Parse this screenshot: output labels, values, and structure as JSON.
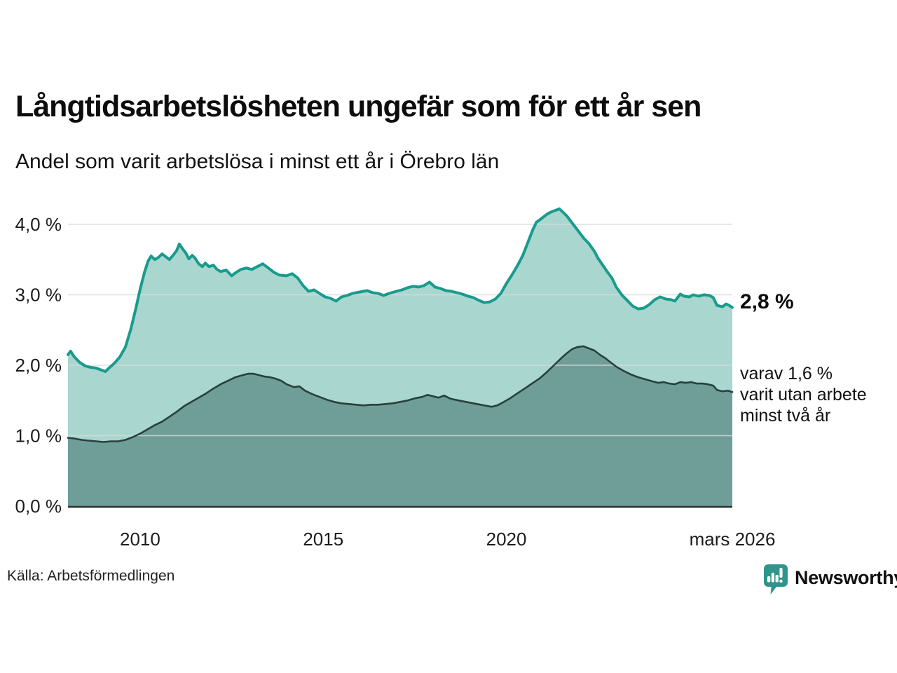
{
  "header": {
    "title": "Långtidsarbetslösheten ungefär som för ett år sen",
    "subtitle": "Andel som varit arbetslösa i minst ett år i Örebro län"
  },
  "chart_data": {
    "type": "area",
    "title": "Långtidsarbetslösheten ungefär som för ett år sen",
    "subtitle": "Andel som varit arbetslösa i minst ett år i Örebro län",
    "unit": "%",
    "grid": true,
    "colors": {
      "line_1yr": "#189b8d",
      "fill_1yr": "#a9d6cf",
      "line_2yr": "#27413d",
      "fill_2yr": "#6f9e99",
      "gridline": "#d7dbda",
      "baseline": "#2e2e2e",
      "tick_text": "#1c1c1c",
      "brand_teal": "#2f948b"
    },
    "x_axis": {
      "range": [
        2008.03,
        2026.17
      ],
      "ticks": [
        {
          "value": 2010,
          "label": "2010"
        },
        {
          "value": 2015,
          "label": "2015"
        },
        {
          "value": 2020,
          "label": "2020"
        },
        {
          "value": 2026.17,
          "label": "mars 2026"
        }
      ]
    },
    "y_axis": {
      "range": [
        0,
        4
      ],
      "ticks": [
        {
          "value": 0,
          "label": "0,0 %"
        },
        {
          "value": 1,
          "label": "1,0 %"
        },
        {
          "value": 2,
          "label": "2,0 %"
        },
        {
          "value": 3,
          "label": "3,0 %"
        },
        {
          "value": 4,
          "label": "4,0 %"
        }
      ]
    },
    "series": [
      {
        "name": "Andel arbetslösa minst ett år",
        "end_value": "2,8 %",
        "points": [
          [
            2008.03,
            2.15
          ],
          [
            2008.1,
            2.2
          ],
          [
            2008.2,
            2.12
          ],
          [
            2008.35,
            2.04
          ],
          [
            2008.5,
            1.99
          ],
          [
            2008.65,
            1.97
          ],
          [
            2008.8,
            1.96
          ],
          [
            2008.95,
            1.93
          ],
          [
            2009.05,
            1.91
          ],
          [
            2009.15,
            1.96
          ],
          [
            2009.3,
            2.03
          ],
          [
            2009.45,
            2.12
          ],
          [
            2009.6,
            2.26
          ],
          [
            2009.75,
            2.52
          ],
          [
            2009.88,
            2.8
          ],
          [
            2010.0,
            3.08
          ],
          [
            2010.12,
            3.32
          ],
          [
            2010.22,
            3.48
          ],
          [
            2010.3,
            3.55
          ],
          [
            2010.4,
            3.5
          ],
          [
            2010.5,
            3.53
          ],
          [
            2010.6,
            3.58
          ],
          [
            2010.7,
            3.54
          ],
          [
            2010.8,
            3.5
          ],
          [
            2010.9,
            3.56
          ],
          [
            2011.0,
            3.63
          ],
          [
            2011.07,
            3.72
          ],
          [
            2011.15,
            3.66
          ],
          [
            2011.25,
            3.59
          ],
          [
            2011.33,
            3.51
          ],
          [
            2011.42,
            3.56
          ],
          [
            2011.5,
            3.52
          ],
          [
            2011.6,
            3.44
          ],
          [
            2011.7,
            3.4
          ],
          [
            2011.78,
            3.45
          ],
          [
            2011.88,
            3.4
          ],
          [
            2012.0,
            3.42
          ],
          [
            2012.1,
            3.36
          ],
          [
            2012.2,
            3.33
          ],
          [
            2012.35,
            3.35
          ],
          [
            2012.5,
            3.27
          ],
          [
            2012.6,
            3.31
          ],
          [
            2012.75,
            3.36
          ],
          [
            2012.9,
            3.38
          ],
          [
            2013.05,
            3.36
          ],
          [
            2013.2,
            3.4
          ],
          [
            2013.35,
            3.44
          ],
          [
            2013.5,
            3.38
          ],
          [
            2013.65,
            3.32
          ],
          [
            2013.8,
            3.28
          ],
          [
            2014.0,
            3.27
          ],
          [
            2014.15,
            3.3
          ],
          [
            2014.3,
            3.24
          ],
          [
            2014.45,
            3.13
          ],
          [
            2014.6,
            3.05
          ],
          [
            2014.75,
            3.07
          ],
          [
            2014.9,
            3.02
          ],
          [
            2015.05,
            2.97
          ],
          [
            2015.2,
            2.95
          ],
          [
            2015.35,
            2.91
          ],
          [
            2015.5,
            2.97
          ],
          [
            2015.65,
            2.99
          ],
          [
            2015.8,
            3.02
          ],
          [
            2016.0,
            3.04
          ],
          [
            2016.2,
            3.06
          ],
          [
            2016.35,
            3.03
          ],
          [
            2016.5,
            3.02
          ],
          [
            2016.65,
            2.99
          ],
          [
            2016.8,
            3.02
          ],
          [
            2017.0,
            3.05
          ],
          [
            2017.15,
            3.07
          ],
          [
            2017.3,
            3.1
          ],
          [
            2017.45,
            3.12
          ],
          [
            2017.6,
            3.11
          ],
          [
            2017.75,
            3.13
          ],
          [
            2017.9,
            3.18
          ],
          [
            2018.05,
            3.11
          ],
          [
            2018.2,
            3.09
          ],
          [
            2018.35,
            3.06
          ],
          [
            2018.5,
            3.05
          ],
          [
            2018.65,
            3.03
          ],
          [
            2018.8,
            3.01
          ],
          [
            2018.95,
            2.98
          ],
          [
            2019.1,
            2.96
          ],
          [
            2019.25,
            2.92
          ],
          [
            2019.4,
            2.89
          ],
          [
            2019.55,
            2.9
          ],
          [
            2019.7,
            2.94
          ],
          [
            2019.85,
            3.02
          ],
          [
            2020.0,
            3.16
          ],
          [
            2020.15,
            3.28
          ],
          [
            2020.3,
            3.41
          ],
          [
            2020.45,
            3.56
          ],
          [
            2020.6,
            3.76
          ],
          [
            2020.72,
            3.92
          ],
          [
            2020.82,
            4.03
          ],
          [
            2020.9,
            4.06
          ],
          [
            2021.0,
            4.1
          ],
          [
            2021.1,
            4.14
          ],
          [
            2021.2,
            4.17
          ],
          [
            2021.3,
            4.19
          ],
          [
            2021.45,
            4.22
          ],
          [
            2021.55,
            4.17
          ],
          [
            2021.65,
            4.12
          ],
          [
            2021.78,
            4.03
          ],
          [
            2021.9,
            3.95
          ],
          [
            2022.0,
            3.88
          ],
          [
            2022.12,
            3.8
          ],
          [
            2022.25,
            3.73
          ],
          [
            2022.4,
            3.62
          ],
          [
            2022.5,
            3.52
          ],
          [
            2022.62,
            3.43
          ],
          [
            2022.75,
            3.33
          ],
          [
            2022.88,
            3.24
          ],
          [
            2023.0,
            3.11
          ],
          [
            2023.15,
            3.0
          ],
          [
            2023.3,
            2.92
          ],
          [
            2023.45,
            2.84
          ],
          [
            2023.6,
            2.8
          ],
          [
            2023.75,
            2.81
          ],
          [
            2023.9,
            2.86
          ],
          [
            2024.05,
            2.93
          ],
          [
            2024.2,
            2.97
          ],
          [
            2024.35,
            2.94
          ],
          [
            2024.5,
            2.93
          ],
          [
            2024.6,
            2.91
          ],
          [
            2024.75,
            3.01
          ],
          [
            2024.85,
            2.98
          ],
          [
            2025.0,
            2.97
          ],
          [
            2025.1,
            3.0
          ],
          [
            2025.25,
            2.98
          ],
          [
            2025.4,
            3.0
          ],
          [
            2025.55,
            2.99
          ],
          [
            2025.65,
            2.96
          ],
          [
            2025.75,
            2.85
          ],
          [
            2025.9,
            2.83
          ],
          [
            2026.0,
            2.87
          ],
          [
            2026.08,
            2.85
          ],
          [
            2026.17,
            2.82
          ]
        ]
      },
      {
        "name": "Andel arbetslösa minst två år",
        "end_value": "1,6 %",
        "points": [
          [
            2008.03,
            0.97
          ],
          [
            2008.2,
            0.96
          ],
          [
            2008.4,
            0.94
          ],
          [
            2008.6,
            0.93
          ],
          [
            2008.8,
            0.92
          ],
          [
            2009.0,
            0.91
          ],
          [
            2009.2,
            0.92
          ],
          [
            2009.4,
            0.92
          ],
          [
            2009.6,
            0.94
          ],
          [
            2009.8,
            0.98
          ],
          [
            2010.0,
            1.03
          ],
          [
            2010.2,
            1.09
          ],
          [
            2010.4,
            1.15
          ],
          [
            2010.6,
            1.2
          ],
          [
            2010.8,
            1.27
          ],
          [
            2011.0,
            1.34
          ],
          [
            2011.2,
            1.42
          ],
          [
            2011.4,
            1.48
          ],
          [
            2011.6,
            1.54
          ],
          [
            2011.8,
            1.6
          ],
          [
            2012.0,
            1.67
          ],
          [
            2012.2,
            1.73
          ],
          [
            2012.4,
            1.78
          ],
          [
            2012.6,
            1.83
          ],
          [
            2012.8,
            1.86
          ],
          [
            2012.95,
            1.88
          ],
          [
            2013.1,
            1.88
          ],
          [
            2013.25,
            1.86
          ],
          [
            2013.4,
            1.84
          ],
          [
            2013.55,
            1.83
          ],
          [
            2013.7,
            1.81
          ],
          [
            2013.85,
            1.78
          ],
          [
            2014.0,
            1.73
          ],
          [
            2014.2,
            1.69
          ],
          [
            2014.35,
            1.7
          ],
          [
            2014.5,
            1.64
          ],
          [
            2014.7,
            1.59
          ],
          [
            2014.9,
            1.55
          ],
          [
            2015.1,
            1.51
          ],
          [
            2015.3,
            1.48
          ],
          [
            2015.5,
            1.46
          ],
          [
            2015.7,
            1.45
          ],
          [
            2015.9,
            1.44
          ],
          [
            2016.1,
            1.43
          ],
          [
            2016.3,
            1.44
          ],
          [
            2016.5,
            1.44
          ],
          [
            2016.7,
            1.45
          ],
          [
            2016.9,
            1.46
          ],
          [
            2017.1,
            1.48
          ],
          [
            2017.3,
            1.5
          ],
          [
            2017.5,
            1.53
          ],
          [
            2017.7,
            1.55
          ],
          [
            2017.85,
            1.58
          ],
          [
            2018.0,
            1.56
          ],
          [
            2018.15,
            1.54
          ],
          [
            2018.3,
            1.57
          ],
          [
            2018.45,
            1.53
          ],
          [
            2018.6,
            1.51
          ],
          [
            2018.8,
            1.49
          ],
          [
            2019.0,
            1.47
          ],
          [
            2019.2,
            1.45
          ],
          [
            2019.4,
            1.43
          ],
          [
            2019.6,
            1.41
          ],
          [
            2019.75,
            1.43
          ],
          [
            2019.9,
            1.47
          ],
          [
            2020.1,
            1.53
          ],
          [
            2020.3,
            1.6
          ],
          [
            2020.5,
            1.67
          ],
          [
            2020.7,
            1.74
          ],
          [
            2020.9,
            1.81
          ],
          [
            2021.1,
            1.9
          ],
          [
            2021.3,
            2.0
          ],
          [
            2021.5,
            2.1
          ],
          [
            2021.65,
            2.17
          ],
          [
            2021.8,
            2.23
          ],
          [
            2021.95,
            2.26
          ],
          [
            2022.1,
            2.27
          ],
          [
            2022.25,
            2.24
          ],
          [
            2022.4,
            2.21
          ],
          [
            2022.55,
            2.15
          ],
          [
            2022.7,
            2.1
          ],
          [
            2022.85,
            2.04
          ],
          [
            2023.0,
            1.98
          ],
          [
            2023.2,
            1.92
          ],
          [
            2023.4,
            1.87
          ],
          [
            2023.6,
            1.83
          ],
          [
            2023.8,
            1.8
          ],
          [
            2024.0,
            1.77
          ],
          [
            2024.15,
            1.75
          ],
          [
            2024.3,
            1.76
          ],
          [
            2024.45,
            1.74
          ],
          [
            2024.6,
            1.73
          ],
          [
            2024.75,
            1.76
          ],
          [
            2024.9,
            1.75
          ],
          [
            2025.05,
            1.76
          ],
          [
            2025.2,
            1.74
          ],
          [
            2025.35,
            1.74
          ],
          [
            2025.5,
            1.73
          ],
          [
            2025.65,
            1.71
          ],
          [
            2025.75,
            1.65
          ],
          [
            2025.9,
            1.63
          ],
          [
            2026.05,
            1.64
          ],
          [
            2026.17,
            1.62
          ]
        ]
      }
    ],
    "annotations": {
      "end_value_label": "2,8 %",
      "secondary_label_lines": [
        "varav 1,6 %",
        "varit utan arbete",
        "minst två år"
      ]
    },
    "legend_position": "right-annotations"
  },
  "footer": {
    "source": "Källa: Arbetsförmedlingen",
    "brand": "Newsworthy"
  }
}
